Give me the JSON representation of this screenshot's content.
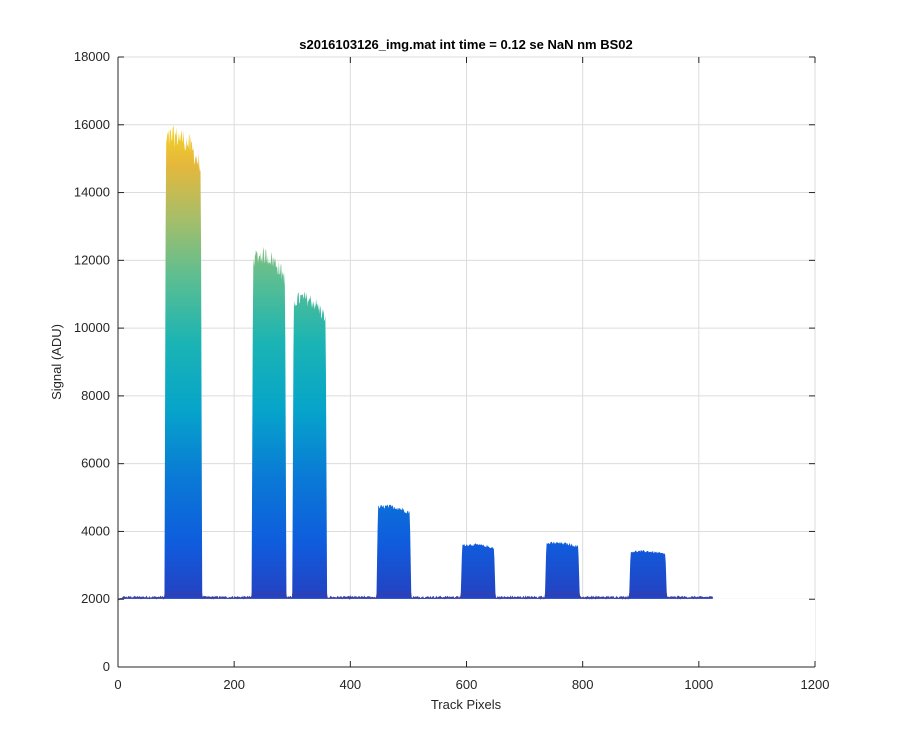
{
  "chart_data": {
    "type": "area",
    "title": "s2016103126_img.mat int time = 0.12 se  NaN nm BS02",
    "xlabel": "Track Pixels",
    "ylabel": "Signal (ADU)",
    "xlim": [
      0,
      1200
    ],
    "ylim": [
      0,
      18000
    ],
    "xticks": [
      0,
      200,
      400,
      600,
      800,
      1000,
      1200
    ],
    "yticks": [
      0,
      2000,
      4000,
      6000,
      8000,
      10000,
      12000,
      14000,
      16000,
      18000
    ],
    "grid": true,
    "colormap": "parula",
    "baseline": 2050,
    "x_range": [
      0,
      1024
    ],
    "bands": [
      {
        "x_start": 80,
        "x_end": 145,
        "peak": 16000
      },
      {
        "x_start": 230,
        "x_end": 290,
        "peak": 12400
      },
      {
        "x_start": 300,
        "x_end": 360,
        "peak": 11100
      },
      {
        "x_start": 445,
        "x_end": 505,
        "peak": 4800
      },
      {
        "x_start": 590,
        "x_end": 650,
        "peak": 3650
      },
      {
        "x_start": 735,
        "x_end": 795,
        "peak": 3700
      },
      {
        "x_start": 880,
        "x_end": 945,
        "peak": 3450
      }
    ],
    "colors": {
      "axis": "#262626",
      "grid": "#dcdcdc",
      "baseline_line": "#3a3fa0"
    }
  }
}
